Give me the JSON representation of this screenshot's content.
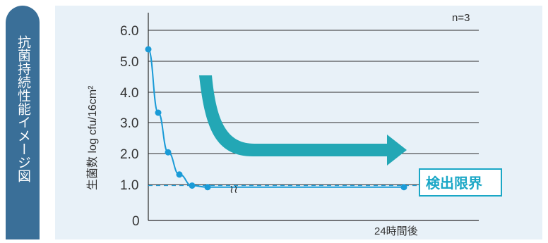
{
  "banner": {
    "label": "抗菌持続性能イメージ図"
  },
  "chart_data": {
    "type": "line",
    "title": "",
    "xlabel": "24時間後",
    "ylabel": "生菌数 log cfu/16cm²",
    "ylim": [
      0,
      6.0
    ],
    "yticks": [
      "0",
      "1.0",
      "2.0",
      "3.0",
      "4.0",
      "5.0",
      "6.0"
    ],
    "n_label": "n=3",
    "detection_limit": {
      "label": "検出限界",
      "value": 1.1,
      "style": "dashed"
    },
    "series": [
      {
        "x_positions": [
          "start",
          "early",
          "early",
          "early",
          "early",
          "early",
          "24時間後"
        ],
        "values": [
          5.4,
          3.4,
          2.15,
          1.45,
          1.1,
          1.05,
          1.05
        ]
      }
    ],
    "break_mark": "≀≀",
    "grid": true
  },
  "colors": {
    "banner": "#3a6f98",
    "panel": "#e8f1f8",
    "series": "#1a9bd7",
    "arrow": "#23a7b5",
    "detection_box": "#1aa7c6"
  }
}
